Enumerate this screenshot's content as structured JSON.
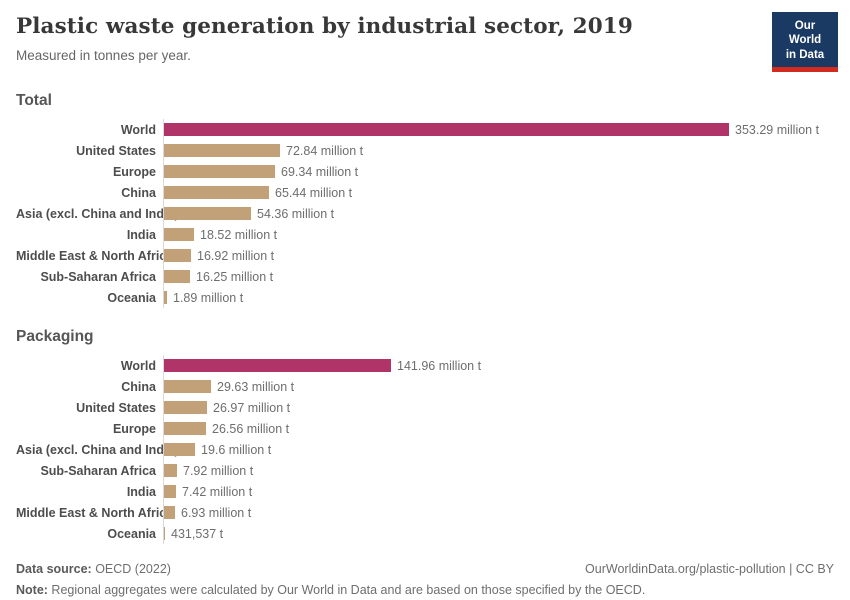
{
  "header": {
    "title": "Plastic waste generation by industrial sector, 2019",
    "subtitle": "Measured in tonnes per year.",
    "logo": {
      "line1": "Our World",
      "line2": "in Data"
    }
  },
  "colors": {
    "highlight_bar": "#B03468",
    "default_bar": "#C2A078",
    "axis_line": "#D9D9D9",
    "logo_bg": "#1A3A63",
    "logo_accent": "#D42B21"
  },
  "chart_data": [
    {
      "type": "bar",
      "title": "Total",
      "unit": "million tonnes per year",
      "orientation": "horizontal",
      "grid": false,
      "legend": false,
      "xlim": [
        0,
        355
      ],
      "highlight_index": 0,
      "categories": [
        "World",
        "United States",
        "Europe",
        "China",
        "Asia (excl. China and India)",
        "India",
        "Middle East & North Africa",
        "Sub-Saharan Africa",
        "Oceania"
      ],
      "values": [
        353.29,
        72.84,
        69.34,
        65.44,
        54.36,
        18.52,
        16.92,
        16.25,
        1.89
      ],
      "value_labels": [
        "353.29 million t",
        "72.84 million t",
        "69.34 million t",
        "65.44 million t",
        "54.36 million t",
        "18.52 million t",
        "16.92 million t",
        "16.25 million t",
        "1.89 million t"
      ]
    },
    {
      "type": "bar",
      "title": "Packaging",
      "unit": "million tonnes per year",
      "orientation": "horizontal",
      "grid": false,
      "legend": false,
      "xlim": [
        0,
        355
      ],
      "highlight_index": 0,
      "categories": [
        "World",
        "China",
        "United States",
        "Europe",
        "Asia (excl. China and India)",
        "Sub-Saharan Africa",
        "India",
        "Middle East & North Africa",
        "Oceania"
      ],
      "values": [
        141.96,
        29.63,
        26.97,
        26.56,
        19.6,
        7.92,
        7.42,
        6.93,
        0.431537
      ],
      "value_labels": [
        "141.96 million t",
        "29.63 million t",
        "26.97 million t",
        "26.56 million t",
        "19.6 million t",
        "7.92 million t",
        "7.42 million t",
        "6.93 million t",
        "431,537 t"
      ]
    }
  ],
  "footer": {
    "source_label": "Data source:",
    "source_value": " OECD (2022)",
    "link": "OurWorldinData.org/plastic-pollution | CC BY",
    "note_label": "Note:",
    "note_value": " Regional aggregates were calculated by Our World in Data and are based on those specified by the OECD."
  }
}
